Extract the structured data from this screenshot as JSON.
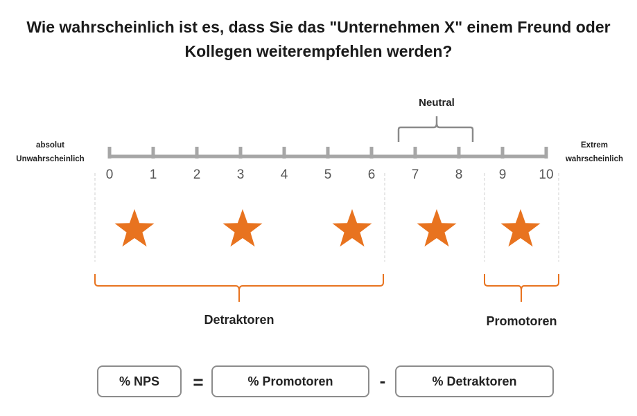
{
  "question": {
    "line1": "Wie wahrscheinlich ist es, dass Sie das \"Unternehmen X\" einem Freund oder",
    "line2": "Kollegen weiterempfehlen werden?"
  },
  "scale": {
    "left_label": [
      "absolut",
      "Unwahrscheinlich"
    ],
    "right_label": [
      "Extrem",
      "wahrscheinlich"
    ],
    "ticks": [
      "0",
      "1",
      "2",
      "3",
      "4",
      "5",
      "6",
      "7",
      "8",
      "9",
      "10"
    ],
    "neutral_label": "Neutral"
  },
  "groups": {
    "detractors": "Detraktoren",
    "promoters": "Promotoren"
  },
  "formula": {
    "nps": "% NPS",
    "equals": "=",
    "promoters": "% Promotoren",
    "minus": "-",
    "detractors": "% Detraktoren"
  },
  "colors": {
    "accent": "#e8731f",
    "axis": "#a6a6a6",
    "box_border": "#8c8c8c"
  },
  "icons": [
    "star-icon",
    "star-icon",
    "star-icon",
    "star-icon",
    "star-icon"
  ]
}
